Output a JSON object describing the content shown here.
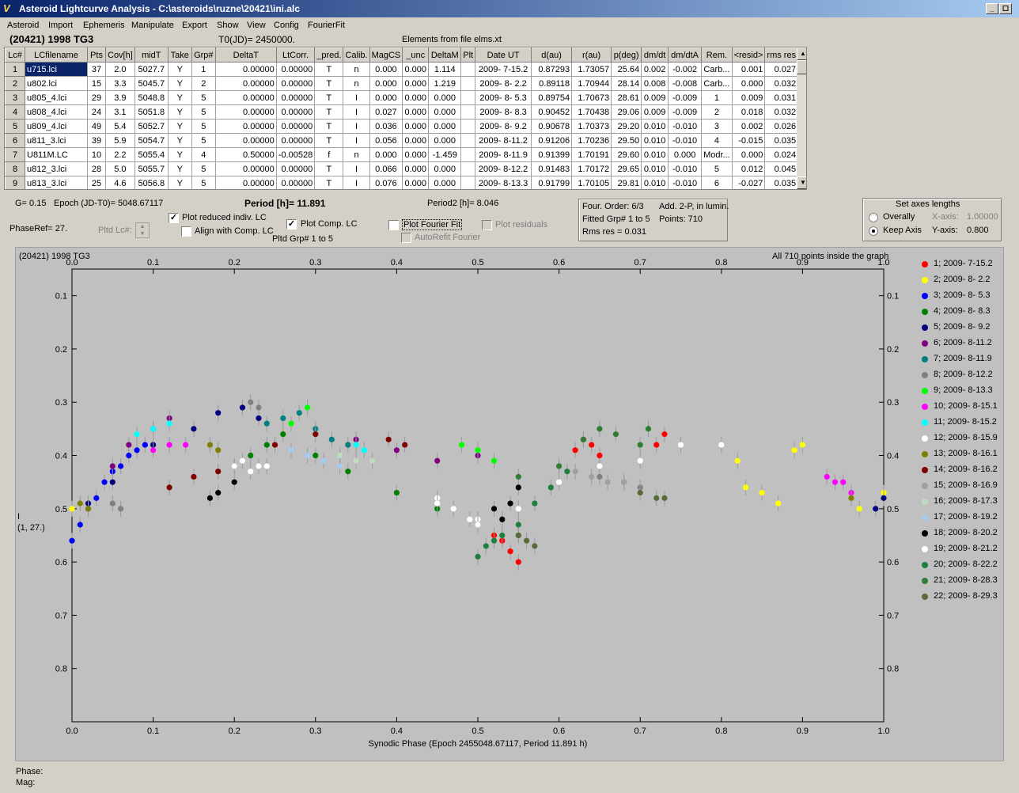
{
  "window": {
    "title": "Asteroid Lightcurve Analysis - C:\\asteroids\\ruzne\\20421\\ini.alc",
    "app_icon": "alc-app-icon",
    "controls": [
      "_",
      "◻",
      "✕"
    ]
  },
  "menu": [
    "Asteroid",
    "Import",
    "Ephemeris",
    "Manipulate",
    "Export",
    "Show",
    "View",
    "Config",
    "FourierFit"
  ],
  "header": {
    "asteroid": "(20421) 1998 TG3",
    "t0": "T0(JD)= 2450000.",
    "elements": "Elements from file elms.xt"
  },
  "table": {
    "columns": [
      "Lc#",
      "LCfilename",
      "Pts",
      "Cov[h]",
      "midT",
      "Take",
      "Grp#",
      "DeltaT",
      "LtCorr.",
      "_pred.",
      "Calib.",
      "MagCS",
      "_unc",
      "DeltaM",
      "Plt",
      "Date UT",
      "d(au)",
      "r(au)",
      "p(deg)",
      "dm/dt",
      "dm/dtA",
      "Rem.",
      "<resid>",
      "rms res"
    ],
    "rows": [
      [
        "1",
        "u715.lci",
        "37",
        "2.0",
        "5027.7",
        "Y",
        "1",
        "0.00000",
        "0.00000",
        "T",
        "n",
        "0.000",
        "0.000",
        "1.114",
        "",
        "2009- 7-15.2",
        "0.87293",
        "1.73057",
        "25.64",
        "0.002",
        "-0.002",
        "Carb...",
        "0.001",
        "0.027"
      ],
      [
        "2",
        "u802.lci",
        "15",
        "3.3",
        "5045.7",
        "Y",
        "2",
        "0.00000",
        "0.00000",
        "T",
        "n",
        "0.000",
        "0.000",
        "1.219",
        "",
        "2009- 8- 2.2",
        "0.89118",
        "1.70944",
        "28.14",
        "0.008",
        "-0.008",
        "Carb...",
        "0.000",
        "0.032"
      ],
      [
        "3",
        "u805_4.lci",
        "29",
        "3.9",
        "5048.8",
        "Y",
        "5",
        "0.00000",
        "0.00000",
        "T",
        "I",
        "0.000",
        "0.000",
        "0.000",
        "",
        "2009- 8- 5.3",
        "0.89754",
        "1.70673",
        "28.61",
        "0.009",
        "-0.009",
        "1",
        "0.009",
        "0.031"
      ],
      [
        "4",
        "u808_4.lci",
        "24",
        "3.1",
        "5051.8",
        "Y",
        "5",
        "0.00000",
        "0.00000",
        "T",
        "I",
        "0.027",
        "0.000",
        "0.000",
        "",
        "2009- 8- 8.3",
        "0.90452",
        "1.70438",
        "29.06",
        "0.009",
        "-0.009",
        "2",
        "0.018",
        "0.032"
      ],
      [
        "5",
        "u809_4.lci",
        "49",
        "5.4",
        "5052.7",
        "Y",
        "5",
        "0.00000",
        "0.00000",
        "T",
        "I",
        "0.036",
        "0.000",
        "0.000",
        "",
        "2009- 8- 9.2",
        "0.90678",
        "1.70373",
        "29.20",
        "0.010",
        "-0.010",
        "3",
        "0.002",
        "0.026"
      ],
      [
        "6",
        "u811_3.lci",
        "39",
        "5.9",
        "5054.7",
        "Y",
        "5",
        "0.00000",
        "0.00000",
        "T",
        "I",
        "0.056",
        "0.000",
        "0.000",
        "",
        "2009- 8-11.2",
        "0.91206",
        "1.70236",
        "29.50",
        "0.010",
        "-0.010",
        "4",
        "-0.015",
        "0.035"
      ],
      [
        "7",
        "U811M.LC",
        "10",
        "2.2",
        "5055.4",
        "Y",
        "4",
        "0.50000",
        "-0.00528",
        "f",
        "n",
        "0.000",
        "0.000",
        "-1.459",
        "",
        "2009- 8-11.9",
        "0.91399",
        "1.70191",
        "29.60",
        "0.010",
        "0.000",
        "Modr...",
        "0.000",
        "0.024"
      ],
      [
        "8",
        "u812_3.lci",
        "28",
        "5.0",
        "5055.7",
        "Y",
        "5",
        "0.00000",
        "0.00000",
        "T",
        "I",
        "0.066",
        "0.000",
        "0.000",
        "",
        "2009- 8-12.2",
        "0.91483",
        "1.70172",
        "29.65",
        "0.010",
        "-0.010",
        "5",
        "0.012",
        "0.045"
      ],
      [
        "9",
        "u813_3.lci",
        "25",
        "4.6",
        "5056.8",
        "Y",
        "5",
        "0.00000",
        "0.00000",
        "T",
        "I",
        "0.076",
        "0.000",
        "0.000",
        "",
        "2009- 8-13.3",
        "0.91799",
        "1.70105",
        "29.81",
        "0.010",
        "-0.010",
        "6",
        "-0.027",
        "0.035"
      ]
    ]
  },
  "params": {
    "g": "G= 0.15",
    "epoch": "Epoch (JD-T0)= 5048.67117",
    "period": "Period [h]= 11.891",
    "period2": "Period2 [h]= 8.046",
    "phaseref": "PhaseRef= 27.",
    "pltd_lc": "Pltd Lc#:",
    "plot_reduced": "Plot reduced indiv. LC",
    "align_comp": "Align with Comp. LC",
    "plot_comp": "Plot Comp. LC",
    "pltd_grp": "Pltd Grp#  1   to   5",
    "plot_fourier": "Plot Fourier Fit",
    "autorefit": "AutoRefit Fourier",
    "plot_residuals": "Plot residuals"
  },
  "fourier_info": {
    "order": "Four. Order:  6/3",
    "add": "Add. 2-P, in lumin.",
    "fitted": "Fitted Grp# 1 to 5",
    "points": "Points: 710",
    "rms": "Rms res     = 0.031"
  },
  "axes_box": {
    "title": "Set axes lengths",
    "overally": "Overally",
    "keep_axis": "Keep Axis",
    "xaxis_label": "X-axis:",
    "xaxis_value": "1.00000",
    "yaxis_label": "Y-axis:",
    "yaxis_value": "0.800"
  },
  "plot": {
    "name": "(20421) 1998 TG3",
    "status_note": "All 710 points inside the graph",
    "ylabel": "I",
    "ylabel2": "(1, 27.)"
  },
  "chart_data": {
    "type": "scatter",
    "xlabel": "Synodic Phase (Epoch 2455048.67117, Period 11.891 h)",
    "ylabel": "I",
    "xlim": [
      0.0,
      1.0
    ],
    "ylim": [
      0.9,
      0.05
    ],
    "y_inverted": true,
    "x_ticks": [
      "0.0",
      "0.1",
      "0.2",
      "0.3",
      "0.4",
      "0.5",
      "0.6",
      "0.7",
      "0.8",
      "0.9",
      "1.0"
    ],
    "y_ticks": [
      "0.1",
      "0.2",
      "0.3",
      "0.4",
      "0.5",
      "0.6",
      "0.7",
      "0.8"
    ],
    "legend_position": "right",
    "series": [
      {
        "name": "1; 2009- 7-15.2",
        "color": "#ff0000",
        "x": [
          0.52,
          0.53,
          0.54,
          0.55,
          0.62,
          0.63,
          0.64,
          0.65,
          0.72,
          0.73
        ],
        "y": [
          0.55,
          0.56,
          0.58,
          0.6,
          0.39,
          0.37,
          0.38,
          0.4,
          0.38,
          0.36
        ]
      },
      {
        "name": "2; 2009- 8- 2.2",
        "color": "#ffff00",
        "x": [
          0.0,
          0.82,
          0.83,
          0.85,
          0.87,
          0.89,
          0.9,
          0.97,
          1.0
        ],
        "y": [
          0.5,
          0.41,
          0.46,
          0.47,
          0.49,
          0.39,
          0.38,
          0.5,
          0.47
        ]
      },
      {
        "name": "3; 2009- 8- 5.3",
        "color": "#0000ff",
        "x": [
          0.0,
          0.01,
          0.02,
          0.03,
          0.04,
          0.05,
          0.06,
          0.07,
          0.08,
          0.09
        ],
        "y": [
          0.56,
          0.53,
          0.5,
          0.48,
          0.45,
          0.43,
          0.42,
          0.4,
          0.39,
          0.38
        ]
      },
      {
        "name": "4; 2009- 8- 8.3",
        "color": "#008000",
        "x": [
          0.2,
          0.22,
          0.24,
          0.26,
          0.3,
          0.34,
          0.4,
          0.45,
          0.5,
          0.55
        ],
        "y": [
          0.42,
          0.4,
          0.38,
          0.36,
          0.4,
          0.43,
          0.47,
          0.5,
          0.53,
          0.55
        ]
      },
      {
        "name": "5; 2009- 8- 9.2",
        "color": "#000080",
        "x": [
          0.02,
          0.05,
          0.1,
          0.15,
          0.18,
          0.21,
          0.23,
          0.99,
          1.0
        ],
        "y": [
          0.49,
          0.45,
          0.38,
          0.35,
          0.32,
          0.31,
          0.33,
          0.5,
          0.48
        ]
      },
      {
        "name": "6; 2009- 8-11.2",
        "color": "#800080",
        "x": [
          0.05,
          0.07,
          0.1,
          0.12,
          0.35,
          0.4,
          0.45,
          0.5
        ],
        "y": [
          0.42,
          0.38,
          0.35,
          0.33,
          0.37,
          0.39,
          0.41,
          0.4
        ]
      },
      {
        "name": "7; 2009- 8-11.9",
        "color": "#008080",
        "x": [
          0.24,
          0.26,
          0.28,
          0.3,
          0.32,
          0.34
        ],
        "y": [
          0.34,
          0.33,
          0.32,
          0.35,
          0.37,
          0.38
        ]
      },
      {
        "name": "8; 2009- 8-12.2",
        "color": "#808080",
        "x": [
          0.05,
          0.06,
          0.22,
          0.23,
          0.65,
          0.68,
          0.7
        ],
        "y": [
          0.49,
          0.5,
          0.3,
          0.31,
          0.44,
          0.45,
          0.46
        ]
      },
      {
        "name": "9; 2009- 8-13.3",
        "color": "#00ff00",
        "x": [
          0.27,
          0.29,
          0.48,
          0.5,
          0.52
        ],
        "y": [
          0.34,
          0.31,
          0.38,
          0.39,
          0.41
        ]
      },
      {
        "name": "10; 2009- 8-15.1",
        "color": "#ff00ff",
        "x": [
          0.1,
          0.12,
          0.14,
          0.93,
          0.94,
          0.95,
          0.96
        ],
        "y": [
          0.39,
          0.38,
          0.38,
          0.44,
          0.45,
          0.45,
          0.47
        ]
      },
      {
        "name": "11; 2009- 8-15.2",
        "color": "#00ffff",
        "x": [
          0.08,
          0.1,
          0.12,
          0.35,
          0.36
        ],
        "y": [
          0.36,
          0.35,
          0.34,
          0.38,
          0.39
        ]
      },
      {
        "name": "12; 2009- 8-15.9",
        "color": "#ffffff",
        "x": [
          0.2,
          0.22,
          0.24,
          0.45,
          0.5,
          0.55,
          0.6,
          0.65,
          0.7,
          0.75,
          0.8
        ],
        "y": [
          0.42,
          0.43,
          0.42,
          0.48,
          0.52,
          0.5,
          0.45,
          0.42,
          0.41,
          0.38,
          0.38
        ]
      },
      {
        "name": "13; 2009- 8-16.1",
        "color": "#808000",
        "x": [
          0.01,
          0.02,
          0.17,
          0.18,
          0.96
        ],
        "y": [
          0.49,
          0.5,
          0.38,
          0.39,
          0.48
        ]
      },
      {
        "name": "14; 2009- 8-16.2",
        "color": "#800000",
        "x": [
          0.12,
          0.15,
          0.18,
          0.25,
          0.3,
          0.39,
          0.41
        ],
        "y": [
          0.46,
          0.44,
          0.43,
          0.38,
          0.36,
          0.37,
          0.38
        ]
      },
      {
        "name": "15; 2009- 8-16.9",
        "color": "#a0a0a0",
        "x": [
          0.6,
          0.62,
          0.64,
          0.66,
          0.68
        ],
        "y": [
          0.42,
          0.43,
          0.44,
          0.45,
          0.45
        ]
      },
      {
        "name": "16; 2009- 8-17.3",
        "color": "#c0dcc0",
        "x": [
          0.33,
          0.35,
          0.37
        ],
        "y": [
          0.4,
          0.41,
          0.41
        ]
      },
      {
        "name": "17; 2009- 8-19.2",
        "color": "#a6caf0",
        "x": [
          0.27,
          0.29,
          0.31,
          0.33
        ],
        "y": [
          0.39,
          0.4,
          0.41,
          0.42
        ]
      },
      {
        "name": "18; 2009- 8-20.2",
        "color": "#000000",
        "x": [
          0.17,
          0.18,
          0.2,
          0.52,
          0.53,
          0.54,
          0.55
        ],
        "y": [
          0.48,
          0.47,
          0.45,
          0.5,
          0.52,
          0.49,
          0.46
        ]
      },
      {
        "name": "19; 2009- 8-21.2",
        "color": "#ffffff",
        "x": [
          0.21,
          0.23,
          0.45,
          0.47,
          0.49,
          0.5
        ],
        "y": [
          0.41,
          0.42,
          0.49,
          0.5,
          0.52,
          0.53
        ]
      },
      {
        "name": "20; 2009- 8-22.2",
        "color": "#1f7f3f",
        "x": [
          0.5,
          0.51,
          0.52,
          0.53,
          0.55,
          0.57,
          0.59,
          0.61
        ],
        "y": [
          0.59,
          0.57,
          0.56,
          0.55,
          0.53,
          0.49,
          0.46,
          0.43
        ]
      },
      {
        "name": "21; 2009- 8-28.3",
        "color": "#2e7d32",
        "x": [
          0.55,
          0.6,
          0.63,
          0.65,
          0.67,
          0.7,
          0.71
        ],
        "y": [
          0.44,
          0.42,
          0.37,
          0.35,
          0.36,
          0.38,
          0.35
        ]
      },
      {
        "name": "22; 2009- 8-29.3",
        "color": "#5a6b3a",
        "x": [
          0.55,
          0.56,
          0.57,
          0.7,
          0.72,
          0.73
        ],
        "y": [
          0.55,
          0.56,
          0.57,
          0.47,
          0.48,
          0.48
        ]
      }
    ]
  },
  "status_bar": {
    "phase": "Phase:",
    "mag": "Mag:"
  }
}
